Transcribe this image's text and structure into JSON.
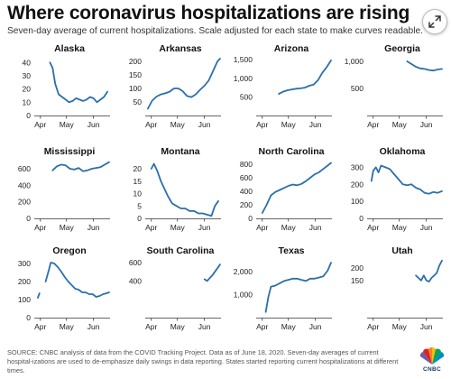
{
  "header": {
    "title": "Where coronavirus hospitalizations are rising",
    "subtitle": "Seven-day average of current hospitalizations. Scale adjusted for each state to make curves readable."
  },
  "footer": {
    "source": "SOURCE: CNBC analysis of data from the COVID Tracking Project. Data as of June 18, 2020. Seven-day averages of current hospital-izations are used to de-emphasize daily swings in data reporting. States started reporting current hospitalizations at different times."
  },
  "logo": {
    "text": "CNBC"
  },
  "icons": {
    "expand": "expand-icon",
    "logo": "nbc-peacock-icon"
  },
  "colors": {
    "line": "#2b6fab",
    "text": "#222222",
    "axis": "#333333"
  },
  "chart_data": [
    {
      "type": "line",
      "title": "Alaska",
      "x_domain": [
        "2020-03-25",
        "2020-06-20"
      ],
      "xticks": [
        "Apr",
        "May",
        "Jun"
      ],
      "ylim": [
        0,
        45
      ],
      "yticks": [
        "0",
        "10",
        "20",
        "30",
        "40"
      ],
      "x": [
        "2020-04-12",
        "2020-04-15",
        "2020-04-18",
        "2020-04-22",
        "2020-04-26",
        "2020-04-30",
        "2020-05-04",
        "2020-05-08",
        "2020-05-12",
        "2020-05-16",
        "2020-05-20",
        "2020-05-24",
        "2020-05-28",
        "2020-06-01",
        "2020-06-05",
        "2020-06-09",
        "2020-06-13",
        "2020-06-17"
      ],
      "y": [
        40,
        36,
        24,
        16,
        14,
        12,
        10,
        11,
        13,
        12,
        11,
        12,
        14,
        13,
        10,
        12,
        14,
        18
      ]
    },
    {
      "type": "line",
      "title": "Arkansas",
      "x_domain": [
        "2020-03-25",
        "2020-06-20"
      ],
      "xticks": [
        "Apr",
        "May",
        "Jun"
      ],
      "ylim": [
        0,
        220
      ],
      "yticks": [
        "50",
        "100",
        "150",
        "200"
      ],
      "x": [
        "2020-03-28",
        "2020-04-02",
        "2020-04-07",
        "2020-04-12",
        "2020-04-17",
        "2020-04-22",
        "2020-04-27",
        "2020-05-02",
        "2020-05-07",
        "2020-05-12",
        "2020-05-17",
        "2020-05-22",
        "2020-05-27",
        "2020-06-01",
        "2020-06-06",
        "2020-06-11",
        "2020-06-16",
        "2020-06-19"
      ],
      "y": [
        25,
        55,
        70,
        78,
        82,
        88,
        100,
        100,
        90,
        72,
        68,
        78,
        95,
        110,
        130,
        165,
        200,
        210
      ]
    },
    {
      "type": "line",
      "title": "Arizona",
      "x_domain": [
        "2020-03-25",
        "2020-06-20"
      ],
      "xticks": [
        "Apr",
        "May",
        "Jun"
      ],
      "ylim": [
        0,
        1600
      ],
      "yticks": [
        "500",
        "1,000",
        "1,500"
      ],
      "x": [
        "2020-04-20",
        "2020-04-25",
        "2020-04-30",
        "2020-05-05",
        "2020-05-10",
        "2020-05-15",
        "2020-05-20",
        "2020-05-25",
        "2020-05-30",
        "2020-06-04",
        "2020-06-09",
        "2020-06-14",
        "2020-06-19"
      ],
      "y": [
        580,
        640,
        680,
        700,
        720,
        730,
        750,
        800,
        830,
        950,
        1150,
        1300,
        1480
      ]
    },
    {
      "type": "line",
      "title": "Georgia",
      "x_domain": [
        "2020-03-25",
        "2020-06-20"
      ],
      "xticks": [
        "Apr",
        "May",
        "Jun"
      ],
      "ylim": [
        0,
        1100
      ],
      "yticks": [
        "500",
        "1,000"
      ],
      "x": [
        "2020-05-10",
        "2020-05-15",
        "2020-05-20",
        "2020-05-25",
        "2020-05-30",
        "2020-06-04",
        "2020-06-09",
        "2020-06-14",
        "2020-06-19"
      ],
      "y": [
        1000,
        950,
        900,
        870,
        860,
        840,
        830,
        850,
        860
      ]
    },
    {
      "type": "line",
      "title": "Mississippi",
      "x_domain": [
        "2020-03-25",
        "2020-06-20"
      ],
      "xticks": [
        "Apr",
        "May",
        "Jun"
      ],
      "ylim": [
        0,
        720
      ],
      "yticks": [
        "0",
        "200",
        "400",
        "600"
      ],
      "x": [
        "2020-04-15",
        "2020-04-20",
        "2020-04-25",
        "2020-04-30",
        "2020-05-05",
        "2020-05-10",
        "2020-05-15",
        "2020-05-20",
        "2020-05-25",
        "2020-05-30",
        "2020-06-04",
        "2020-06-09",
        "2020-06-14",
        "2020-06-19"
      ],
      "y": [
        580,
        630,
        650,
        640,
        600,
        590,
        610,
        570,
        580,
        600,
        610,
        620,
        650,
        680
      ]
    },
    {
      "type": "line",
      "title": "Montana",
      "x_domain": [
        "2020-03-25",
        "2020-06-20"
      ],
      "xticks": [
        "Apr",
        "May",
        "Jun"
      ],
      "ylim": [
        0,
        24
      ],
      "yticks": [
        "0",
        "5",
        "10",
        "15",
        "20"
      ],
      "x": [
        "2020-04-01",
        "2020-04-04",
        "2020-04-08",
        "2020-04-12",
        "2020-04-16",
        "2020-04-20",
        "2020-04-25",
        "2020-04-30",
        "2020-05-05",
        "2020-05-10",
        "2020-05-15",
        "2020-05-20",
        "2020-05-25",
        "2020-05-30",
        "2020-06-04",
        "2020-06-09",
        "2020-06-13",
        "2020-06-17"
      ],
      "y": [
        20,
        22,
        19,
        15,
        12,
        9,
        6,
        5,
        4,
        4,
        3,
        3,
        2,
        2,
        1.5,
        1,
        5,
        7
      ]
    },
    {
      "type": "line",
      "title": "North Carolina",
      "x_domain": [
        "2020-03-25",
        "2020-06-20"
      ],
      "xticks": [
        "Apr",
        "May",
        "Jun"
      ],
      "ylim": [
        0,
        880
      ],
      "yticks": [
        "0",
        "200",
        "400",
        "600",
        "800"
      ],
      "x": [
        "2020-04-01",
        "2020-04-06",
        "2020-04-11",
        "2020-04-16",
        "2020-04-21",
        "2020-04-26",
        "2020-05-01",
        "2020-05-06",
        "2020-05-11",
        "2020-05-16",
        "2020-05-21",
        "2020-05-26",
        "2020-05-31",
        "2020-06-05",
        "2020-06-10",
        "2020-06-15",
        "2020-06-19"
      ],
      "y": [
        80,
        200,
        340,
        390,
        420,
        450,
        480,
        500,
        490,
        510,
        550,
        600,
        650,
        680,
        730,
        780,
        820
      ]
    },
    {
      "type": "line",
      "title": "Oklahoma",
      "x_domain": [
        "2020-03-25",
        "2020-06-20"
      ],
      "xticks": [
        "Apr",
        "May",
        "Jun"
      ],
      "ylim": [
        0,
        350
      ],
      "yticks": [
        "0",
        "100",
        "200",
        "300"
      ],
      "x": [
        "2020-03-30",
        "2020-04-01",
        "2020-04-04",
        "2020-04-07",
        "2020-04-10",
        "2020-04-15",
        "2020-04-20",
        "2020-04-25",
        "2020-04-30",
        "2020-05-05",
        "2020-05-10",
        "2020-05-15",
        "2020-05-20",
        "2020-05-25",
        "2020-05-30",
        "2020-06-04",
        "2020-06-09",
        "2020-06-14",
        "2020-06-19"
      ],
      "y": [
        220,
        280,
        300,
        270,
        310,
        300,
        290,
        260,
        230,
        200,
        195,
        200,
        180,
        170,
        150,
        145,
        155,
        150,
        160
      ]
    },
    {
      "type": "line",
      "title": "Oregon",
      "x_domain": [
        "2020-03-25",
        "2020-06-20"
      ],
      "xticks": [
        "Apr",
        "May",
        "Jun"
      ],
      "ylim": [
        0,
        330
      ],
      "yticks": [
        "0",
        "100",
        "200",
        "300"
      ],
      "segments": [
        {
          "x": [
            "2020-03-29",
            "2020-03-31"
          ],
          "y": [
            110,
            135
          ]
        },
        {
          "x": [
            "2020-04-07",
            "2020-04-10",
            "2020-04-13",
            "2020-04-17",
            "2020-04-21",
            "2020-04-25",
            "2020-04-29",
            "2020-05-03",
            "2020-05-07",
            "2020-05-11",
            "2020-05-15",
            "2020-05-19",
            "2020-05-23",
            "2020-05-27",
            "2020-05-31",
            "2020-06-04",
            "2020-06-08",
            "2020-06-12",
            "2020-06-16",
            "2020-06-19"
          ],
          "y": [
            200,
            250,
            305,
            300,
            280,
            255,
            225,
            200,
            180,
            160,
            155,
            140,
            140,
            130,
            130,
            115,
            120,
            130,
            135,
            140
          ]
        }
      ]
    },
    {
      "type": "line",
      "title": "South Carolina",
      "x_domain": [
        "2020-03-25",
        "2020-06-20"
      ],
      "xticks": [
        "Apr",
        "May",
        "Jun"
      ],
      "ylim": [
        0,
        650
      ],
      "yticks": [
        "400",
        "600"
      ],
      "x": [
        "2020-06-01",
        "2020-06-04",
        "2020-06-07",
        "2020-06-10",
        "2020-06-13",
        "2020-06-16",
        "2020-06-19"
      ],
      "y": [
        420,
        400,
        430,
        460,
        500,
        540,
        580
      ]
    },
    {
      "type": "line",
      "title": "Texas",
      "x_domain": [
        "2020-03-25",
        "2020-06-20"
      ],
      "xticks": [
        "Apr",
        "May",
        "Jun"
      ],
      "ylim": [
        0,
        2600
      ],
      "yticks": [
        "1,000",
        "2,000"
      ],
      "x": [
        "2020-04-05",
        "2020-04-08",
        "2020-04-11",
        "2020-04-16",
        "2020-04-21",
        "2020-04-26",
        "2020-05-01",
        "2020-05-06",
        "2020-05-11",
        "2020-05-16",
        "2020-05-21",
        "2020-05-26",
        "2020-05-31",
        "2020-06-05",
        "2020-06-10",
        "2020-06-15",
        "2020-06-19"
      ],
      "y": [
        250,
        900,
        1350,
        1400,
        1500,
        1600,
        1650,
        1700,
        1700,
        1650,
        1600,
        1700,
        1700,
        1750,
        1800,
        2050,
        2400
      ]
    },
    {
      "type": "line",
      "title": "Utah",
      "x_domain": [
        "2020-03-25",
        "2020-06-20"
      ],
      "xticks": [
        "Apr",
        "May",
        "Jun"
      ],
      "ylim": [
        0,
        240
      ],
      "yticks": [
        "150",
        "200"
      ],
      "x": [
        "2020-05-20",
        "2020-05-23",
        "2020-05-26",
        "2020-05-29",
        "2020-06-01",
        "2020-06-04",
        "2020-06-07",
        "2020-06-10",
        "2020-06-13",
        "2020-06-16",
        "2020-06-19"
      ],
      "y": [
        170,
        160,
        150,
        170,
        150,
        145,
        160,
        170,
        180,
        210,
        230
      ]
    }
  ]
}
